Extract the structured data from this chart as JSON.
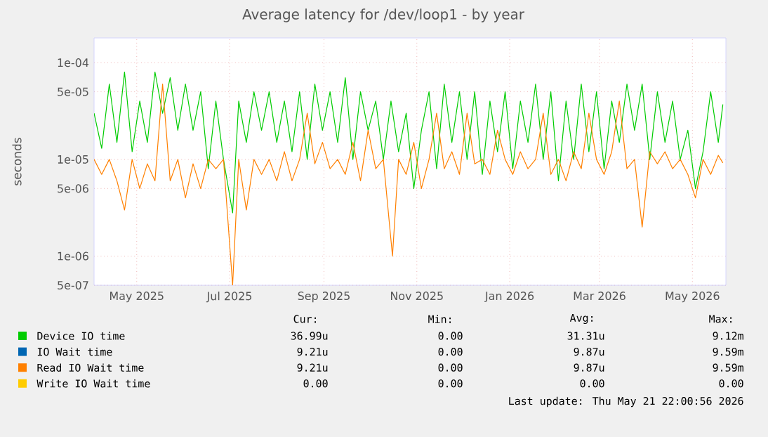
{
  "chart_data": {
    "type": "line",
    "title": "Average latency for /dev/loop1 - by year",
    "ylabel": "seconds",
    "log": "y",
    "grid": true,
    "legend": "bottom",
    "marker": "none",
    "line_style": "solid",
    "xlim": [
      "2025-04-03",
      "2026-05-23"
    ],
    "ylim": [
      5e-07,
      0.00018
    ],
    "xticks": [
      {
        "value": "2025-05-01",
        "label": "May 2025"
      },
      {
        "value": "2025-07-01",
        "label": "Jul 2025"
      },
      {
        "value": "2025-09-01",
        "label": "Sep 2025"
      },
      {
        "value": "2025-11-01",
        "label": "Nov 2025"
      },
      {
        "value": "2026-01-01",
        "label": "Jan 2026"
      },
      {
        "value": "2026-03-01",
        "label": "Mar 2026"
      },
      {
        "value": "2026-05-01",
        "label": "May 2026"
      }
    ],
    "yticks": [
      {
        "value": 5e-07,
        "label": "5e-07"
      },
      {
        "value": 1e-06,
        "label": "1e-06"
      },
      {
        "value": 5e-06,
        "label": "5e-06"
      },
      {
        "value": 1e-05,
        "label": "1e-05"
      },
      {
        "value": 5e-05,
        "label": "5e-05"
      },
      {
        "value": 0.0001,
        "label": "1e-04"
      }
    ],
    "series": [
      {
        "name": "Device IO time",
        "color": "#00cc00",
        "x": [
          "2025-04-03",
          "2025-04-08",
          "2025-04-13",
          "2025-04-18",
          "2025-04-23",
          "2025-04-28",
          "2025-05-03",
          "2025-05-08",
          "2025-05-13",
          "2025-05-18",
          "2025-05-23",
          "2025-05-28",
          "2025-06-02",
          "2025-06-07",
          "2025-06-12",
          "2025-06-17",
          "2025-06-22",
          "2025-06-27",
          "2025-07-03",
          "2025-07-07",
          "2025-07-12",
          "2025-07-17",
          "2025-07-22",
          "2025-07-27",
          "2025-08-01",
          "2025-08-06",
          "2025-08-11",
          "2025-08-16",
          "2025-08-21",
          "2025-08-26",
          "2025-08-31",
          "2025-09-05",
          "2025-09-10",
          "2025-09-15",
          "2025-09-20",
          "2025-09-25",
          "2025-09-30",
          "2025-10-05",
          "2025-10-10",
          "2025-10-15",
          "2025-10-20",
          "2025-10-25",
          "2025-10-30",
          "2025-11-04",
          "2025-11-09",
          "2025-11-14",
          "2025-11-19",
          "2025-11-24",
          "2025-11-29",
          "2025-12-04",
          "2025-12-09",
          "2025-12-14",
          "2025-12-19",
          "2025-12-24",
          "2025-12-29",
          "2026-01-03",
          "2026-01-08",
          "2026-01-13",
          "2026-01-18",
          "2026-01-23",
          "2026-01-28",
          "2026-02-02",
          "2026-02-07",
          "2026-02-12",
          "2026-02-17",
          "2026-02-22",
          "2026-02-27",
          "2026-03-04",
          "2026-03-09",
          "2026-03-14",
          "2026-03-19",
          "2026-03-24",
          "2026-03-29",
          "2026-04-03",
          "2026-04-08",
          "2026-04-13",
          "2026-04-18",
          "2026-04-23",
          "2026-04-28",
          "2026-05-03",
          "2026-05-08",
          "2026-05-13",
          "2026-05-18",
          "2026-05-21"
        ],
        "values": [
          3e-05,
          1.3e-05,
          6e-05,
          1.5e-05,
          8e-05,
          1.2e-05,
          4e-05,
          1.5e-05,
          8e-05,
          3e-05,
          7e-05,
          2e-05,
          6e-05,
          2e-05,
          5e-05,
          8e-06,
          4e-05,
          1e-05,
          2.8e-06,
          4e-05,
          1.5e-05,
          5e-05,
          2e-05,
          5e-05,
          1.5e-05,
          4e-05,
          1.2e-05,
          5e-05,
          1e-05,
          6e-05,
          2e-05,
          5e-05,
          1.5e-05,
          7e-05,
          1e-05,
          5e-05,
          2e-05,
          4e-05,
          1e-05,
          4e-05,
          1.2e-05,
          3e-05,
          5e-06,
          2e-05,
          5e-05,
          8e-06,
          6e-05,
          1.5e-05,
          5e-05,
          1e-05,
          5e-05,
          7e-06,
          4e-05,
          1.2e-05,
          5e-05,
          8e-06,
          4e-05,
          1.5e-05,
          6e-05,
          1e-05,
          5e-05,
          6e-06,
          4e-05,
          1e-05,
          6e-05,
          1.2e-05,
          5e-05,
          8e-06,
          4e-05,
          1.5e-05,
          6e-05,
          2e-05,
          6e-05,
          1e-05,
          5e-05,
          1.5e-05,
          4e-05,
          1e-05,
          2e-05,
          5e-06,
          1.2e-05,
          5e-05,
          1.5e-05,
          3.7e-05
        ]
      },
      {
        "name": "IO Wait time",
        "color": "#0066b3"
      },
      {
        "name": "Read IO Wait time",
        "color": "#ff8000",
        "x": [
          "2025-04-03",
          "2025-04-08",
          "2025-04-13",
          "2025-04-18",
          "2025-04-23",
          "2025-04-28",
          "2025-05-03",
          "2025-05-08",
          "2025-05-13",
          "2025-05-18",
          "2025-05-23",
          "2025-05-28",
          "2025-06-02",
          "2025-06-07",
          "2025-06-12",
          "2025-06-17",
          "2025-06-22",
          "2025-06-27",
          "2025-07-03",
          "2025-07-07",
          "2025-07-12",
          "2025-07-17",
          "2025-07-22",
          "2025-07-27",
          "2025-08-01",
          "2025-08-06",
          "2025-08-11",
          "2025-08-16",
          "2025-08-21",
          "2025-08-26",
          "2025-08-31",
          "2025-09-05",
          "2025-09-10",
          "2025-09-15",
          "2025-09-20",
          "2025-09-25",
          "2025-09-30",
          "2025-10-05",
          "2025-10-10",
          "2025-10-16",
          "2025-10-20",
          "2025-10-25",
          "2025-10-30",
          "2025-11-04",
          "2025-11-09",
          "2025-11-14",
          "2025-11-19",
          "2025-11-24",
          "2025-11-29",
          "2025-12-04",
          "2025-12-09",
          "2025-12-14",
          "2025-12-19",
          "2025-12-24",
          "2025-12-29",
          "2026-01-03",
          "2026-01-08",
          "2026-01-13",
          "2026-01-18",
          "2026-01-23",
          "2026-01-28",
          "2026-02-02",
          "2026-02-07",
          "2026-02-12",
          "2026-02-17",
          "2026-02-22",
          "2026-02-27",
          "2026-03-04",
          "2026-03-09",
          "2026-03-14",
          "2026-03-19",
          "2026-03-24",
          "2026-03-29",
          "2026-04-03",
          "2026-04-08",
          "2026-04-13",
          "2026-04-18",
          "2026-04-23",
          "2026-04-28",
          "2026-05-03",
          "2026-05-08",
          "2026-05-13",
          "2026-05-18",
          "2026-05-21"
        ],
        "values": [
          1e-05,
          7e-06,
          1e-05,
          6e-06,
          3e-06,
          1e-05,
          5e-06,
          9e-06,
          6e-06,
          6e-05,
          6e-06,
          1e-05,
          4e-06,
          9e-06,
          5e-06,
          1e-05,
          8e-06,
          1e-05,
          5e-07,
          1e-05,
          3e-06,
          1e-05,
          7e-06,
          1e-05,
          6e-06,
          1.2e-05,
          6e-06,
          1e-05,
          3e-05,
          9e-06,
          1.5e-05,
          8e-06,
          1e-05,
          7e-06,
          1.5e-05,
          6e-06,
          2e-05,
          8e-06,
          1e-05,
          1e-06,
          1e-05,
          7e-06,
          1.5e-05,
          5e-06,
          1e-05,
          3e-05,
          8e-06,
          1.2e-05,
          7e-06,
          3e-05,
          9e-06,
          1e-05,
          7e-06,
          2e-05,
          1e-05,
          7e-06,
          1.2e-05,
          8e-06,
          1e-05,
          3e-05,
          7e-06,
          1e-05,
          6e-06,
          1.2e-05,
          8e-06,
          3e-05,
          1e-05,
          7e-06,
          1.2e-05,
          4e-05,
          8e-06,
          1e-05,
          2e-06,
          1.2e-05,
          9e-06,
          1.2e-05,
          8e-06,
          1e-05,
          7e-06,
          4e-06,
          1e-05,
          7e-06,
          1.1e-05,
          9.2e-06
        ]
      },
      {
        "name": "Write IO Wait time",
        "color": "#ffcc00"
      }
    ],
    "annotations": [
      "Cur:",
      "Min:",
      "Avg:",
      "Max:",
      "36.99u",
      "0.00",
      "31.31u",
      "9.12m",
      "9.21u",
      "0.00",
      "9.87u",
      "9.59m",
      "9.21u",
      "0.00",
      "9.87u",
      "9.59m",
      "0.00",
      "0.00",
      "0.00",
      "0.00",
      "Last update: Thu May 21 22:00:56 2026"
    ]
  }
}
